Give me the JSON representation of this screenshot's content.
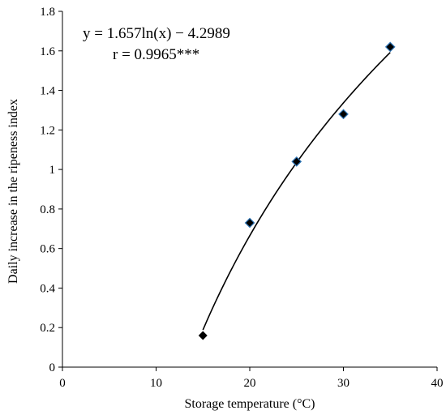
{
  "chart_data": {
    "type": "scatter",
    "xlabel": "Storage temperature (°C)",
    "ylabel": "Daily increase in the ripeness index",
    "xlim": [
      0,
      40
    ],
    "ylim": [
      0,
      1.8
    ],
    "x_ticks": [
      "0",
      "10",
      "20",
      "30",
      "40"
    ],
    "y_ticks": [
      "0",
      "0.2",
      "0.4",
      "0.6",
      "0.8",
      "1",
      "1.2",
      "1.4",
      "1.6",
      "1.8"
    ],
    "grid": false,
    "legend": "none",
    "series": [
      {
        "x": [
          15,
          20,
          25,
          30,
          35
        ],
        "y": [
          0.16,
          0.73,
          1.04,
          1.28,
          1.62
        ],
        "marker": "diamond",
        "color": "#000000",
        "edge_color": "#2E75B6"
      }
    ],
    "trendline": {
      "type": "logarithmic",
      "coefficients": {
        "a": 1.657,
        "b": -4.2989
      },
      "x_range": [
        15,
        35
      ],
      "color": "#000000"
    },
    "annotations": {
      "equation": "y = 1.657ln(x) − 4.2989",
      "correlation": "r = 0.9965***"
    }
  }
}
